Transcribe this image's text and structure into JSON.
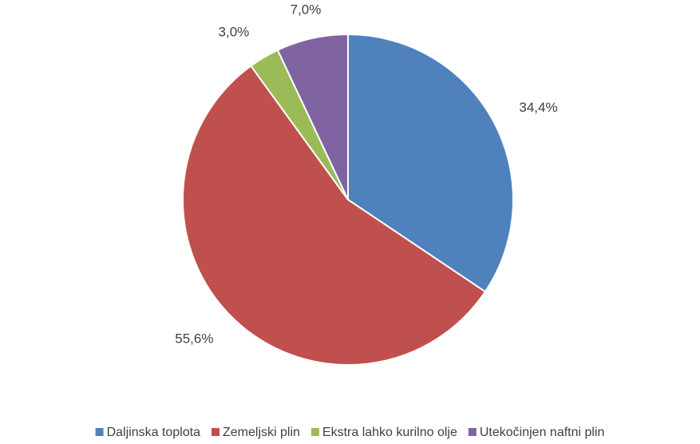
{
  "chart_data": {
    "type": "pie",
    "categories": [
      "Daljinska toplota",
      "Zemeljski plin",
      "Ekstra lahko kurilno olje",
      "Utekočinjen naftni plin"
    ],
    "values": [
      34.4,
      55.6,
      3.0,
      7.0
    ],
    "value_labels": [
      "34,4%",
      "55,6%",
      "3,0%",
      "7,0%"
    ],
    "colors": [
      "#4f81bd",
      "#c0504d",
      "#9bbb59",
      "#8064a2"
    ],
    "legend": "bottom"
  }
}
